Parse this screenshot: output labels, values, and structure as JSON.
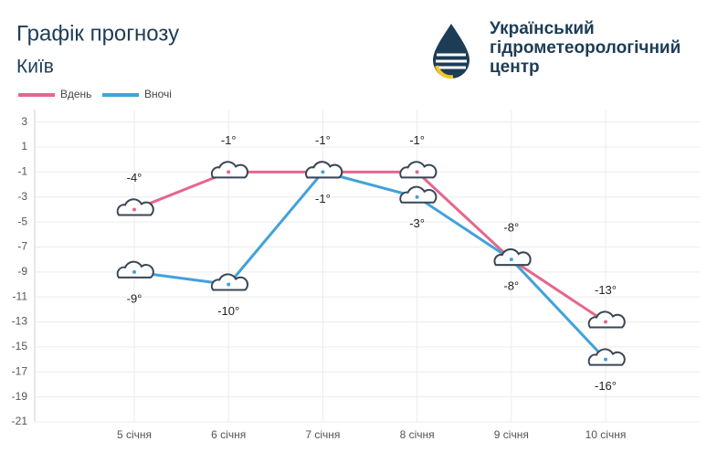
{
  "header": {
    "title": "Графік прогнозу",
    "subtitle": "Київ",
    "organization": [
      "Український",
      "гідрометеорологічний",
      "центр"
    ]
  },
  "chart_data": {
    "type": "line",
    "categories": [
      "5 січня",
      "6 січня",
      "7 січня",
      "8 січня",
      "9 січня",
      "10 січня"
    ],
    "series": [
      {
        "name": "Вдень",
        "color": "#e5678c",
        "values": [
          -4,
          -1,
          -1,
          -1,
          -8,
          -13
        ],
        "value_labels": [
          "-4°",
          "-1°",
          "-1°",
          "-1°",
          "-8°",
          "-13°"
        ]
      },
      {
        "name": "Вночі",
        "color": "#41a2db",
        "values": [
          -9,
          -10,
          -1,
          -3,
          -8,
          -16
        ],
        "value_labels": [
          "-9°",
          "-10°",
          "-1°",
          "-3°",
          "-8°",
          "-16°"
        ]
      }
    ],
    "ylim": [
      -21,
      4
    ],
    "yticks": [
      3,
      1,
      -1,
      -3,
      -5,
      -7,
      -9,
      -11,
      -13,
      -15,
      -17,
      -19,
      -21
    ],
    "grid": true
  }
}
